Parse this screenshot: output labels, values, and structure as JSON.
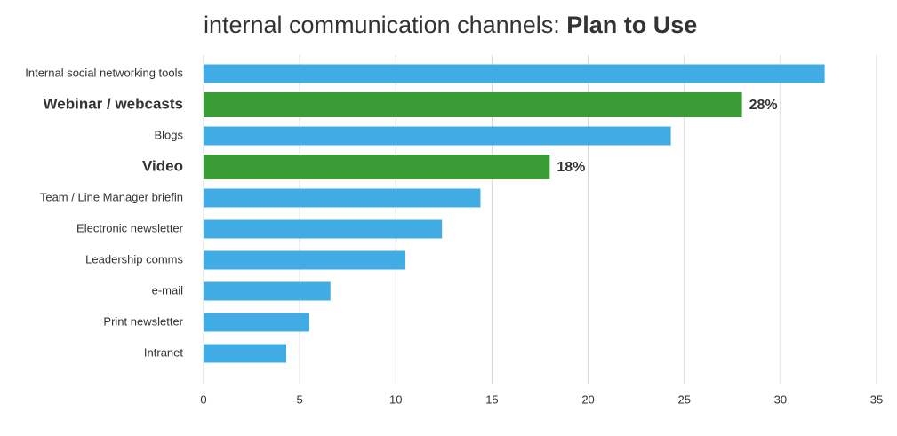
{
  "chart_data": {
    "type": "hbar",
    "title": "internal communication channels:",
    "title_emphasis": "Plan to Use",
    "categories": [
      "Internal social networking tools",
      "Webinar / webcasts",
      "Blogs",
      "Video",
      "Team / Line Manager briefin",
      "Electronic newsletter",
      "Leadership comms",
      "e-mail",
      "Print newsletter",
      "Intranet"
    ],
    "values": [
      32.3,
      28,
      24.3,
      18,
      14.4,
      12.4,
      10.5,
      6.6,
      5.5,
      4.3
    ],
    "value_labels": [
      null,
      "28%",
      null,
      "18%",
      null,
      null,
      null,
      null,
      null,
      null
    ],
    "colors": [
      "#40ace3",
      "#3a9c34",
      "#40ace3",
      "#3a9c34",
      "#40ace3",
      "#40ace3",
      "#40ace3",
      "#40ace3",
      "#40ace3",
      "#40ace3"
    ],
    "xlim": [
      0,
      35
    ],
    "xticks": [
      0,
      5,
      10,
      15,
      20,
      25,
      30,
      35
    ],
    "grid": true
  }
}
